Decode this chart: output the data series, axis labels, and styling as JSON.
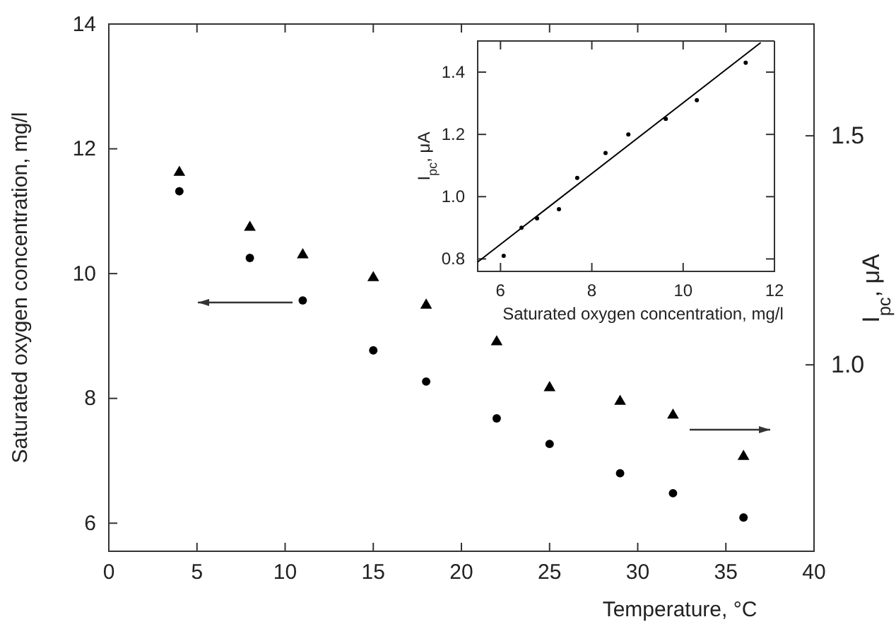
{
  "chart_data": [
    {
      "type": "scatter",
      "xlabel": "Temperature, °C",
      "ylabel": "Saturated oxygen concentration, mg/l",
      "y2label": "I$_{pc}$, μA",
      "xlim": [
        0,
        40
      ],
      "xticks": [
        0,
        5,
        10,
        15,
        20,
        25,
        30,
        35,
        40
      ],
      "ylim": [
        5.55,
        14
      ],
      "yticks": [
        6,
        8,
        10,
        12,
        14
      ],
      "y2lim": [
        0.593,
        1.744
      ],
      "y2ticks": [
        {
          "value": 1,
          "label": "1.0"
        },
        {
          "value": 1.5,
          "label": "1.5"
        }
      ],
      "grid": false,
      "series": [
        {
          "type": "scatter",
          "marker": "circle",
          "color": "#000000",
          "x": [
            4,
            8,
            11,
            15,
            18,
            22,
            25,
            29,
            32,
            36
          ],
          "values": [
            11.32,
            10.25,
            9.57,
            8.77,
            8.27,
            7.68,
            7.27,
            6.8,
            6.48,
            6.09
          ]
        },
        {
          "type": "scatter",
          "marker": "triangle",
          "axis": "y2",
          "color": "#000000",
          "x": [
            4,
            8,
            11,
            15,
            18,
            22,
            25,
            29,
            32,
            36
          ],
          "values": [
            1.42,
            1.3,
            1.24,
            1.19,
            1.13,
            1.05,
            0.95,
            0.92,
            0.89,
            0.8
          ]
        }
      ]
    },
    {
      "type": "scatter",
      "xlabel": "Saturated oxygen concentration, mg/l",
      "ylabel": "I$_{pc}$, μA",
      "xlim": [
        5.5,
        12
      ],
      "xticks": [
        6,
        8,
        10,
        12
      ],
      "ylim": [
        0.76,
        1.5
      ],
      "yticks": [
        {
          "value": 0.8,
          "label": "0.8"
        },
        {
          "value": 1,
          "label": "1.0"
        },
        {
          "value": 1.2,
          "label": "1.2"
        },
        {
          "value": 1.4,
          "label": "1.4"
        }
      ],
      "grid": false,
      "series": [
        {
          "type": "scatter",
          "marker": "circle",
          "color": "#000000",
          "x": [
            6.07,
            6.46,
            6.8,
            7.28,
            7.68,
            8.3,
            8.8,
            9.62,
            10.3,
            11.37
          ],
          "values": [
            0.81,
            0.9,
            0.93,
            0.96,
            1.06,
            1.14,
            1.2,
            1.25,
            1.31,
            1.43
          ]
        },
        {
          "type": "line",
          "line_style": "solid",
          "marker": "none",
          "color": "#000000",
          "x": [
            5.5,
            11.7
          ],
          "values": [
            0.79,
            1.495
          ]
        }
      ]
    }
  ]
}
